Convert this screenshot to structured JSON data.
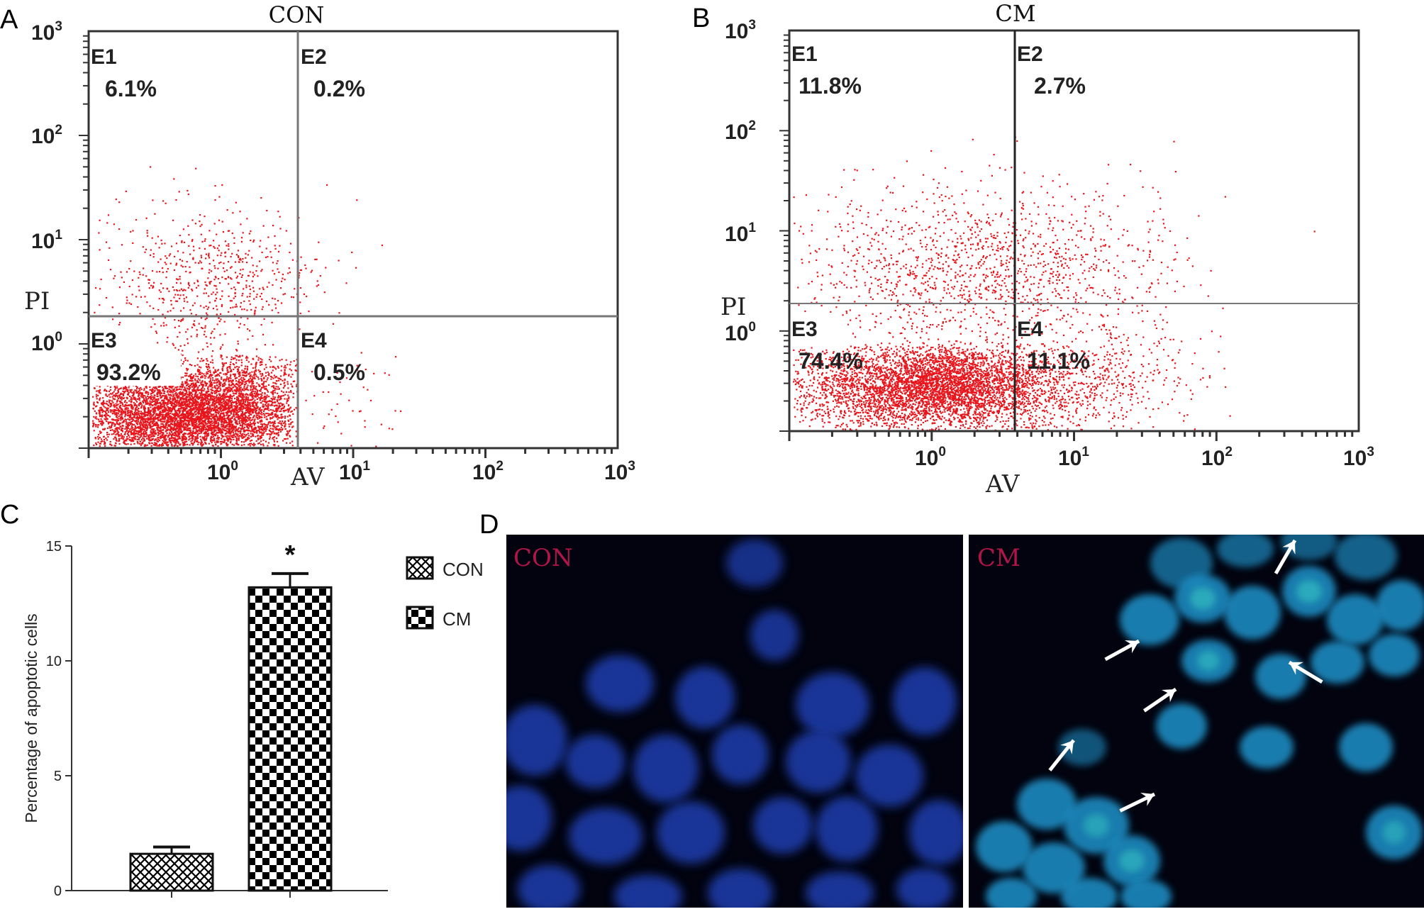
{
  "panels": {
    "A": {
      "letter": "A",
      "title": "CON",
      "x_label": "AV",
      "y_label": "PI",
      "quadrants": [
        {
          "label": "E1",
          "pct": "6.1%"
        },
        {
          "label": "E2",
          "pct": "0.2%"
        },
        {
          "label": "E3",
          "pct": "93.2%"
        },
        {
          "label": "E4",
          "pct": "0.5%"
        }
      ]
    },
    "B": {
      "letter": "B",
      "title": "CM",
      "x_label": "AV",
      "y_label": "PI",
      "quadrants": [
        {
          "label": "E1",
          "pct": "11.8%"
        },
        {
          "label": "E2",
          "pct": "2.7%"
        },
        {
          "label": "E3",
          "pct": "74.4%"
        },
        {
          "label": "E4",
          "pct": "11.1%"
        }
      ]
    },
    "C": {
      "letter": "C"
    },
    "D": {
      "letter": "D",
      "left_label": "CON",
      "right_label": "CM"
    }
  },
  "flow_ticks": {
    "base": "10",
    "exponents": [
      "3",
      "2",
      "1",
      "0"
    ],
    "x_exponents": [
      "0",
      "1",
      "2",
      "3"
    ]
  },
  "colors": {
    "dots": "#e8161c",
    "axis": "#333333",
    "micro_bg": "#02030f",
    "nuclei_con": "#1a3aa6",
    "nuclei_cm": "#1a8ac0",
    "label_magenta": "#b0154a"
  },
  "chart_data": [
    {
      "type": "scatter",
      "panel": "A",
      "title": "CON",
      "xlabel": "AV",
      "ylabel": "PI",
      "scale": "log",
      "xlim": [
        0.1,
        1000
      ],
      "ylim": [
        0.1,
        1000
      ],
      "quadrants": {
        "E1": 6.1,
        "E2": 0.2,
        "E3": 93.2,
        "E4": 0.5
      }
    },
    {
      "type": "scatter",
      "panel": "B",
      "title": "CM",
      "xlabel": "AV",
      "ylabel": "PI",
      "scale": "log",
      "xlim": [
        0.1,
        1000
      ],
      "ylim": [
        0.1,
        1000
      ],
      "quadrants": {
        "E1": 11.8,
        "E2": 2.7,
        "E3": 74.4,
        "E4": 11.1
      }
    },
    {
      "type": "bar",
      "panel": "C",
      "categories": [
        "CON",
        "CM"
      ],
      "values": [
        1.6,
        13.2
      ],
      "errors": [
        0.3,
        0.6
      ],
      "ylabel": "Percentage of apoptotic cells",
      "ylim": [
        0,
        15
      ],
      "yticks": [
        "0",
        "5",
        "10",
        "15"
      ],
      "significance": "*",
      "legend": [
        "CON",
        "CM"
      ],
      "legend_placement": "right"
    }
  ]
}
